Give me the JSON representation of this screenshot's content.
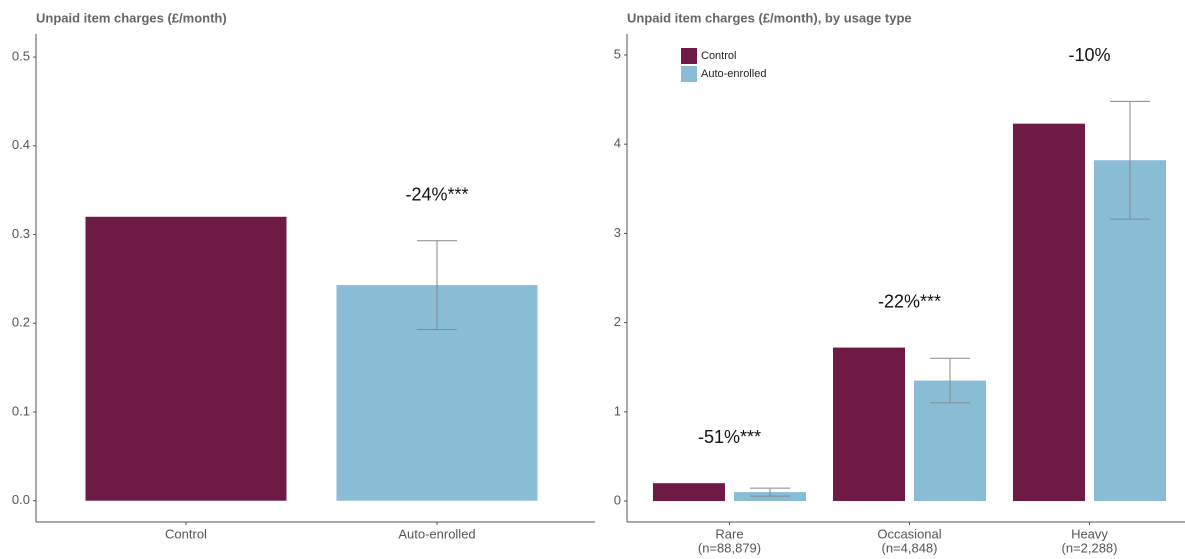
{
  "chart_data": [
    {
      "type": "bar",
      "title": "Unpaid item charges (£/month)",
      "categories": [
        "Control",
        "Auto-enrolled"
      ],
      "values": [
        0.32,
        0.243
      ],
      "errors": [
        null,
        0.05
      ],
      "colors": [
        "#6d1a45",
        "#89bdd6"
      ],
      "ylim": [
        -0.024,
        0.526
      ],
      "yticks": [
        {
          "value": 0,
          "label": "0.0"
        },
        0.1,
        0.2,
        0.3,
        0.4,
        0.5
      ],
      "annotations": [
        {
          "text": "-24%***",
          "category": "Auto-enrolled"
        }
      ]
    },
    {
      "type": "bar",
      "title": "Unpaid item charges (£/month), by usage type",
      "categories": [
        "Rare",
        "Occasional",
        "Heavy"
      ],
      "category_sublabels": [
        "(n=88,879)",
        "(n=4,848)",
        "(n=2,288)"
      ],
      "series": [
        {
          "name": "Control",
          "color": "#6d1a45",
          "values": [
            0.2,
            1.72,
            4.23
          ]
        },
        {
          "name": "Auto-enrolled",
          "color": "#89bdd6",
          "values": [
            0.1,
            1.35,
            3.82
          ],
          "errors": [
            0.045,
            0.25,
            0.66
          ]
        }
      ],
      "ylim": [
        -0.235,
        5.235
      ],
      "yticks": [
        0,
        1,
        2,
        3,
        4,
        5
      ],
      "legend": "top-left",
      "annotations": [
        {
          "text": "-51%***",
          "category": "Rare"
        },
        {
          "text": "-22%***",
          "category": "Occasional"
        },
        {
          "text": "-10%",
          "category": "Heavy"
        }
      ]
    }
  ]
}
